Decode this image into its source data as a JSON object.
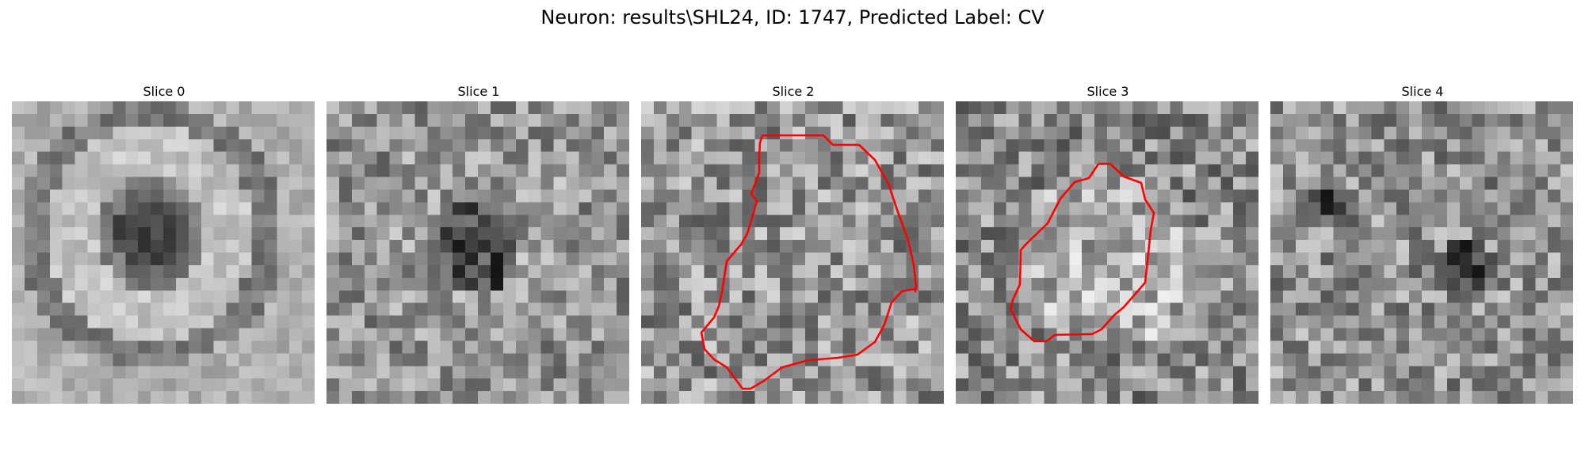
{
  "figure": {
    "title": "Neuron: results\\SHL24, ID: 1747, Predicted Label: CV"
  },
  "panels": [
    {
      "title": "Slice 0",
      "contour": false
    },
    {
      "title": "Slice 1",
      "contour": false
    },
    {
      "title": "Slice 2",
      "contour": true
    },
    {
      "title": "Slice 3",
      "contour": true
    },
    {
      "title": "Slice 4",
      "contour": false
    }
  ],
  "colors": {
    "contour": "#ff0000",
    "colormap": "gray"
  }
}
